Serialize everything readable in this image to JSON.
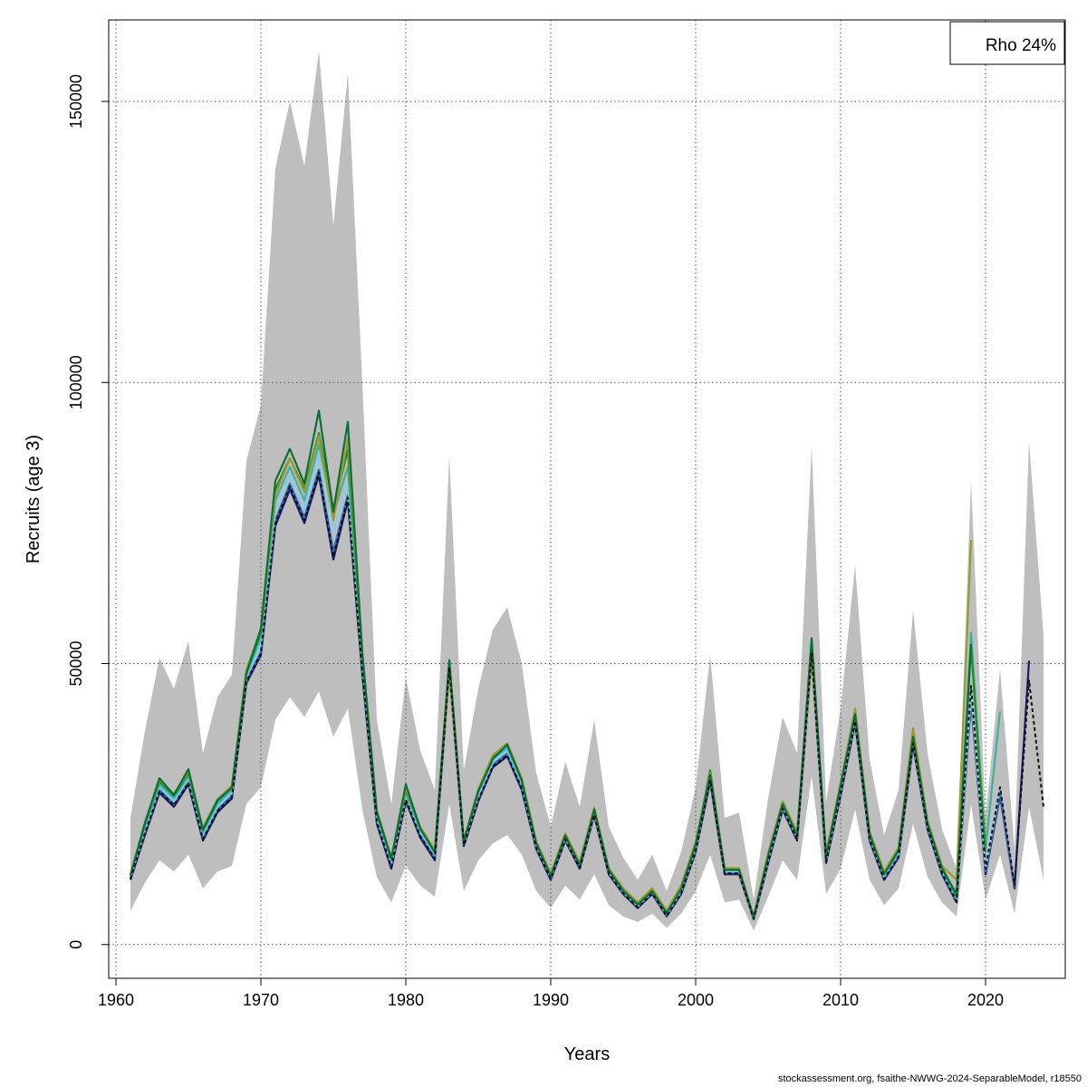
{
  "chart_data": {
    "type": "line",
    "xlabel": "Years",
    "ylabel": "Recruits (age 3)",
    "xlim": [
      1959.5,
      2025.5
    ],
    "ylim": [
      -6000,
      164500
    ],
    "xticks": [
      1960,
      1970,
      1980,
      1990,
      2000,
      2010,
      2020
    ],
    "yticks": [
      0,
      50000,
      100000,
      150000
    ],
    "grid": true,
    "legend": {
      "position": "top-right",
      "text": "Rho 24%"
    },
    "confidence_band": {
      "years": [
        1961,
        1962,
        1963,
        1964,
        1965,
        1966,
        1967,
        1968,
        1969,
        1970,
        1971,
        1972,
        1973,
        1974,
        1975,
        1976,
        1977,
        1978,
        1979,
        1980,
        1981,
        1982,
        1983,
        1984,
        1985,
        1986,
        1987,
        1988,
        1989,
        1990,
        1991,
        1992,
        1993,
        1994,
        1995,
        1996,
        1997,
        1998,
        1999,
        2000,
        2001,
        2002,
        2003,
        2004,
        2005,
        2006,
        2007,
        2008,
        2009,
        2010,
        2011,
        2012,
        2013,
        2014,
        2015,
        2016,
        2017,
        2018,
        2019,
        2020,
        2021,
        2022,
        2023,
        2024
      ],
      "lower": [
        6000,
        11000,
        15000,
        13000,
        16000,
        10000,
        13000,
        14000,
        25000,
        28000,
        40000,
        44000,
        40500,
        45000,
        37000,
        42000,
        24000,
        12000,
        7500,
        14000,
        10500,
        8500,
        25000,
        9500,
        15000,
        18000,
        19500,
        16000,
        9500,
        6500,
        10500,
        8000,
        12500,
        7000,
        5000,
        4000,
        5500,
        3000,
        5500,
        9500,
        16000,
        7500,
        8000,
        2500,
        8500,
        15000,
        11500,
        30000,
        9000,
        13500,
        24000,
        11500,
        7000,
        10000,
        21500,
        12000,
        7500,
        5000,
        25000,
        8000,
        16000,
        5500,
        24500,
        11500
      ],
      "upper": [
        22500,
        38000,
        51000,
        45500,
        54000,
        34000,
        44000,
        48000,
        86000,
        96000,
        138000,
        150000,
        138500,
        159000,
        128000,
        155000,
        100000,
        40000,
        25000,
        47500,
        34500,
        27500,
        87000,
        31000,
        45500,
        56000,
        60000,
        50000,
        30500,
        21000,
        32500,
        24500,
        40000,
        21000,
        15500,
        11500,
        16000,
        9500,
        16500,
        28000,
        51500,
        22500,
        23500,
        8000,
        26000,
        40500,
        34000,
        88500,
        25500,
        42000,
        67500,
        33000,
        19500,
        27500,
        59500,
        34000,
        20500,
        13500,
        82500,
        22500,
        49000,
        17000,
        89500,
        55000
      ]
    },
    "series": [
      {
        "color": "#1a1a6e",
        "dashed": false,
        "start": 1961,
        "values": [
          11500,
          19500,
          27000,
          24500,
          28500,
          18500,
          23500,
          26000,
          46500,
          51500,
          74500,
          81000,
          75000,
          83500,
          68500,
          79000,
          48000,
          21500,
          13500,
          25500,
          19000,
          15000,
          49000,
          17500,
          25500,
          31500,
          33500,
          27500,
          17000,
          11500,
          18500,
          13500,
          23000,
          12500,
          9000,
          6500,
          9000,
          5000,
          9000,
          16500,
          29000,
          12500,
          12500,
          4500,
          14500,
          24000,
          18500,
          51500,
          14500,
          26500,
          39500,
          18500,
          11500,
          15500,
          35500,
          20500,
          12500,
          7500,
          43500,
          12500,
          26500,
          10000,
          50500
        ]
      },
      {
        "color": "#2f6db5",
        "dashed": false,
        "start": 1961,
        "values": [
          11800,
          20000,
          27500,
          25000,
          29000,
          19000,
          24000,
          26500,
          47000,
          52000,
          75500,
          82000,
          76000,
          84500,
          70000,
          80000,
          49000,
          22000,
          14000,
          26000,
          19500,
          15500,
          49500,
          17800,
          26000,
          32000,
          34000,
          28000,
          17300,
          11800,
          18800,
          13800,
          23300,
          12800,
          9200,
          6700,
          9200,
          5200,
          9300,
          16800,
          29500,
          12800,
          12800,
          4600,
          14800,
          24300,
          18800,
          52000,
          14800,
          27000,
          40000,
          18800,
          11800,
          15800,
          36000,
          20800,
          12800,
          7800,
          44000,
          13000,
          27000,
          10200
        ]
      },
      {
        "color": "#87ceeb",
        "dashed": false,
        "start": 1961,
        "values": [
          12000,
          20500,
          28000,
          25500,
          29500,
          19500,
          24500,
          27000,
          47500,
          53500,
          77500,
          83500,
          77500,
          87000,
          73500,
          82000,
          50000,
          22500,
          14500,
          26500,
          20000,
          16000,
          50000,
          18000,
          26500,
          32500,
          34500,
          28500,
          17600,
          12000,
          19000,
          14000,
          23600,
          13000,
          9400,
          6900,
          9400,
          5400,
          9600,
          17200,
          30500,
          13000,
          13000,
          4700,
          15200,
          24600,
          19100,
          52500,
          15200,
          27500,
          40500,
          19200,
          12100,
          16200,
          36500,
          21100,
          13100,
          8100,
          45000,
          13500,
          28000
        ]
      },
      {
        "color": "#40b0a0",
        "dashed": false,
        "start": 1961,
        "values": [
          12200,
          21000,
          28500,
          26000,
          30000,
          20000,
          25000,
          27500,
          48000,
          54500,
          79000,
          85000,
          79000,
          89000,
          76500,
          85000,
          51000,
          23000,
          15000,
          27000,
          20500,
          16300,
          50500,
          18200,
          27000,
          33000,
          35000,
          29000,
          17900,
          12200,
          19300,
          14200,
          23900,
          13200,
          9600,
          7100,
          9600,
          5600,
          9900,
          17600,
          31000,
          13200,
          13200,
          4800,
          15600,
          24900,
          19400,
          53000,
          15600,
          28000,
          41000,
          19500,
          12400,
          16600,
          37000,
          21400,
          13400,
          8400,
          55500,
          17000,
          41500
        ]
      },
      {
        "color": "#228b22",
        "dashed": false,
        "start": 1961,
        "values": [
          12400,
          21500,
          29000,
          26500,
          30500,
          20500,
          25500,
          28000,
          48500,
          55500,
          81000,
          86500,
          81000,
          91000,
          77500,
          88000,
          51500,
          23500,
          15300,
          27500,
          20800,
          16600,
          50300,
          18400,
          27500,
          33500,
          35500,
          29300,
          18200,
          12400,
          19600,
          14400,
          24200,
          13400,
          9800,
          7300,
          9800,
          5800,
          10200,
          18000,
          31000,
          13400,
          13400,
          4900,
          16000,
          25200,
          19700,
          53500,
          16000,
          28500,
          41500,
          19800,
          12700,
          17000,
          37500,
          21700,
          13700,
          8700,
          53000,
          16500
        ]
      },
      {
        "color": "#9a9a30",
        "dashed": false,
        "start": 1961,
        "values": [
          12500,
          21800,
          29300,
          26800,
          30800,
          20800,
          25800,
          28300,
          49000,
          56000,
          80000,
          86500,
          80500,
          90500,
          75500,
          90000,
          52000,
          23800,
          15500,
          27800,
          21000,
          16800,
          48500,
          18600,
          27700,
          33700,
          35800,
          29600,
          18400,
          12600,
          19800,
          14600,
          24400,
          13600,
          10000,
          7500,
          10000,
          6000,
          10500,
          18300,
          30500,
          13600,
          13600,
          5000,
          16300,
          25500,
          20000,
          51500,
          16300,
          28800,
          42000,
          20100,
          13000,
          17300,
          38500,
          22000,
          14000,
          11500,
          72000
        ]
      },
      {
        "color": "#0a6e38",
        "dashed": false,
        "start": 1961,
        "values": [
          12300,
          21600,
          29600,
          26600,
          31200,
          20400,
          25700,
          27900,
          48200,
          56200,
          82500,
          88200,
          82000,
          95000,
          77000,
          93000,
          51800,
          23600,
          15300,
          28500,
          20600,
          16400,
          50600,
          18300,
          27300,
          33000,
          35600,
          29200,
          18000,
          12200,
          19400,
          14100,
          24000,
          13300,
          9600,
          7100,
          9500,
          5600,
          9900,
          17800,
          30200,
          13300,
          13300,
          4800,
          15800,
          25000,
          19400,
          54500,
          15700,
          28300,
          41000,
          19700,
          12500,
          16800,
          37000,
          21500,
          13500,
          9000,
          53500
        ]
      },
      {
        "color": "#111111",
        "dashed": true,
        "start": 1961,
        "values": [
          11700,
          19800,
          27300,
          24800,
          28800,
          18800,
          23800,
          26200,
          46800,
          51800,
          75000,
          81500,
          75500,
          84000,
          69000,
          79500,
          48500,
          21800,
          13800,
          25800,
          19300,
          15300,
          49300,
          17700,
          25700,
          31700,
          33700,
          27800,
          17200,
          11700,
          18700,
          13700,
          23100,
          12700,
          9100,
          6600,
          9100,
          5100,
          9100,
          16700,
          29300,
          12700,
          12700,
          4600,
          14700,
          24200,
          18700,
          51800,
          14700,
          26800,
          39800,
          18700,
          11700,
          15700,
          35800,
          20700,
          12700,
          7700,
          46000,
          13500,
          28000,
          10500,
          47000,
          24500
        ]
      }
    ]
  },
  "legend": {
    "text": "Rho 24%"
  },
  "footer": {
    "text": "stockassessment.org, fsaithe-NWWG-2024-SeparableModel, r18550"
  }
}
